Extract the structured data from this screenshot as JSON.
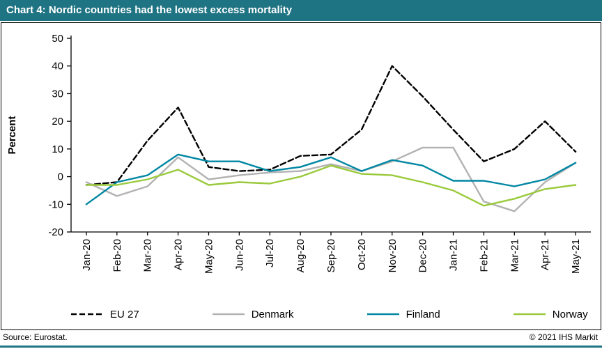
{
  "title": "Chart 4: Nordic countries had the lowest excess mortality",
  "footer": {
    "source": "Source: Eurostat.",
    "copyright": "© 2021 IHS Markit"
  },
  "colors": {
    "title_bar": "#1f7483",
    "accent_line": "#1f7483",
    "axis": "#000000"
  },
  "chart_data": {
    "type": "line",
    "title": "Chart 4: Nordic countries had the lowest excess mortality",
    "xlabel": "",
    "ylabel": "Percent",
    "ylim": [
      -20,
      50
    ],
    "ytick_step": 10,
    "ytick_labels": [
      "-20",
      "-10",
      "0",
      "10",
      "20",
      "30",
      "40",
      "50"
    ],
    "grid": false,
    "legend_position": "bottom",
    "categories": [
      "Jan-20",
      "Feb-20",
      "Mar-20",
      "Apr-20",
      "May-20",
      "Jun-20",
      "Jul-20",
      "Aug-20",
      "Sep-20",
      "Oct-20",
      "Nov-20",
      "Dec-20",
      "Jan-21",
      "Feb-21",
      "Mar-21",
      "Apr-21",
      "May-21"
    ],
    "series": [
      {
        "name": "EU 27",
        "color": "#000000",
        "dash": "8 4",
        "values": [
          -3,
          -2,
          13,
          25,
          3.5,
          2,
          2.5,
          7.5,
          8,
          17,
          40,
          29,
          17,
          5.5,
          10,
          20,
          9
        ]
      },
      {
        "name": "Denmark",
        "color": "#b2b2b2",
        "dash": null,
        "values": [
          -2,
          -7,
          -3.5,
          7,
          -1,
          0.5,
          1.5,
          2,
          4.5,
          2,
          5.5,
          10.5,
          10.5,
          -9,
          -12.5,
          -2,
          5
        ]
      },
      {
        "name": "Finland",
        "color": "#0087a3",
        "dash": null,
        "values": [
          -10,
          -2,
          0.5,
          8,
          5.5,
          5.5,
          2,
          3.5,
          7,
          2,
          6,
          4,
          -1.5,
          -1.5,
          -3.5,
          -1,
          5
        ]
      },
      {
        "name": "Norway",
        "color": "#9aca3c",
        "dash": null,
        "values": [
          -3,
          -3,
          -1,
          2.5,
          -3,
          -2,
          -2.5,
          0,
          4,
          1,
          0.5,
          -2,
          -5,
          -10.5,
          -8,
          -4.5,
          -3
        ]
      }
    ]
  }
}
